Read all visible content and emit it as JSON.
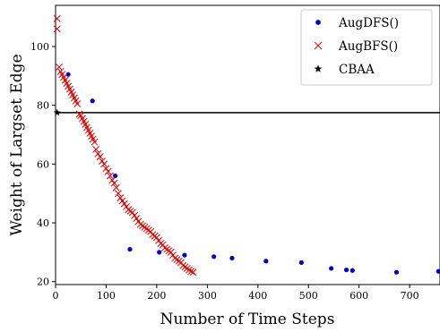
{
  "chart_data": {
    "type": "scatter",
    "xlabel": "Number of Time Steps",
    "ylabel": "Weight of Largset Edge",
    "xlim": [
      0,
      760
    ],
    "ylim": [
      19,
      114
    ],
    "xticks": [
      0,
      100,
      200,
      300,
      400,
      500,
      600,
      700
    ],
    "yticks": [
      20,
      40,
      60,
      80,
      100
    ],
    "legend_position": "top-right",
    "grid": false,
    "series": [
      {
        "name": "AugDFS()",
        "marker": "dot",
        "color": "#0000cc",
        "points": [
          [
            25,
            90.5
          ],
          [
            73,
            81.5
          ],
          [
            118,
            56
          ],
          [
            147,
            31
          ],
          [
            205,
            30
          ],
          [
            255,
            29
          ],
          [
            313,
            28.5
          ],
          [
            349,
            28
          ],
          [
            416,
            27
          ],
          [
            486,
            26.5
          ],
          [
            545,
            24.5
          ],
          [
            575,
            24
          ],
          [
            587,
            23.8
          ],
          [
            674,
            23.2
          ],
          [
            757,
            23.5
          ]
        ]
      },
      {
        "name": "AugBFS()",
        "marker": "x",
        "color": "#dd0000",
        "points": [
          [
            3,
            109.5
          ],
          [
            3,
            106
          ],
          [
            7,
            93
          ],
          [
            10,
            91.5
          ],
          [
            13,
            90.5
          ],
          [
            16,
            89.5
          ],
          [
            19,
            88.5
          ],
          [
            22,
            87.5
          ],
          [
            25,
            86.5
          ],
          [
            28,
            85.5
          ],
          [
            31,
            84.5
          ],
          [
            34,
            83.5
          ],
          [
            37,
            82.5
          ],
          [
            40,
            81.5
          ],
          [
            43,
            80.5
          ],
          [
            47,
            77
          ],
          [
            50,
            76.5
          ],
          [
            53,
            75.5
          ],
          [
            56,
            74.5
          ],
          [
            59,
            73.5
          ],
          [
            62,
            72.5
          ],
          [
            65,
            71.5
          ],
          [
            68,
            70.5
          ],
          [
            71,
            69.5
          ],
          [
            74,
            68.5
          ],
          [
            77,
            67.5
          ],
          [
            80,
            65
          ],
          [
            84,
            63.5
          ],
          [
            88,
            62.5
          ],
          [
            92,
            61
          ],
          [
            96,
            60
          ],
          [
            100,
            58.5
          ],
          [
            104,
            57.5
          ],
          [
            108,
            56
          ],
          [
            112,
            54.5
          ],
          [
            116,
            53.5
          ],
          [
            120,
            52
          ],
          [
            124,
            50
          ],
          [
            128,
            48.5
          ],
          [
            132,
            47.5
          ],
          [
            136,
            46.5
          ],
          [
            140,
            45.5
          ],
          [
            144,
            44.5
          ],
          [
            148,
            44
          ],
          [
            152,
            43.5
          ],
          [
            156,
            42.5
          ],
          [
            160,
            41.5
          ],
          [
            164,
            40.5
          ],
          [
            168,
            39.5
          ],
          [
            172,
            39
          ],
          [
            176,
            38.5
          ],
          [
            180,
            38
          ],
          [
            184,
            37.5
          ],
          [
            188,
            37
          ],
          [
            192,
            36
          ],
          [
            196,
            35.5
          ],
          [
            200,
            35
          ],
          [
            204,
            34
          ],
          [
            208,
            33
          ],
          [
            212,
            32.5
          ],
          [
            216,
            31.5
          ],
          [
            220,
            31
          ],
          [
            224,
            30.5
          ],
          [
            228,
            30
          ],
          [
            232,
            29
          ],
          [
            236,
            28
          ],
          [
            240,
            27.5
          ],
          [
            244,
            27
          ],
          [
            248,
            26.5
          ],
          [
            252,
            25.5
          ],
          [
            256,
            25
          ],
          [
            260,
            24.5
          ],
          [
            264,
            24
          ],
          [
            268,
            23.5
          ],
          [
            272,
            23.2
          ]
        ]
      },
      {
        "name": "CBAA",
        "marker": "star",
        "color": "#000000",
        "points": [
          [
            3,
            77.5
          ]
        ],
        "hline": 77.5
      }
    ]
  }
}
